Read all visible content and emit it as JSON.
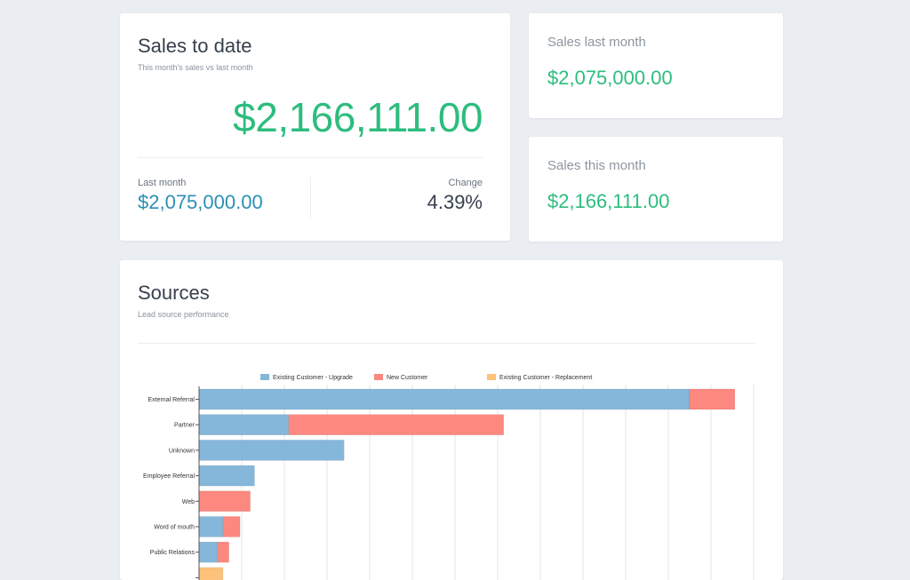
{
  "sales_to_date": {
    "title": "Sales to date",
    "subtitle": "This month's sales vs last month",
    "value": "$2,166,111.00",
    "last_month_label": "Last month",
    "last_month_value": "$2,075,000.00",
    "change_label": "Change",
    "change_value": "4.39%"
  },
  "sales_last_month": {
    "title": "Sales last month",
    "value": "$2,075,000.00"
  },
  "sales_this_month": {
    "title": "Sales this month",
    "value": "$2,166,111.00"
  },
  "sources": {
    "title": "Sources",
    "subtitle": "Lead source performance"
  },
  "colors": {
    "green": "#2dbd7e",
    "blue_text": "#2b8fb5",
    "upgrade": "#85b7da",
    "new": "#fc8880",
    "replacement": "#fcc27b"
  },
  "chart_data": {
    "type": "bar",
    "orientation": "horizontal",
    "stacked": true,
    "categories": [
      "External Referral",
      "Partner",
      "Unknown",
      "Employee Referral",
      "Web",
      "Word of mouth",
      "Public Relations",
      ""
    ],
    "series": [
      {
        "name": "Existing Customer - Upgrade",
        "values": [
          575,
          105,
          170,
          65,
          0,
          28,
          22,
          0
        ]
      },
      {
        "name": "New Customer",
        "values": [
          53,
          252,
          0,
          0,
          60,
          20,
          13,
          0
        ]
      },
      {
        "name": "Existing Customer - Replacement",
        "values": [
          0,
          0,
          0,
          0,
          0,
          0,
          0,
          28
        ]
      }
    ],
    "xlim": [
      0,
      650
    ],
    "x_grid_step": 50,
    "grid": true,
    "legend": "top"
  }
}
